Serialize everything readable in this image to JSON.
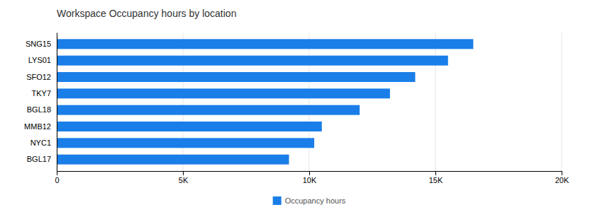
{
  "chart_data": {
    "type": "bar",
    "orientation": "horizontal",
    "title": "Workspace Occupancy hours by location",
    "categories": [
      "SNG15",
      "LYS01",
      "SFO12",
      "TKY7",
      "BGL18",
      "MMB12",
      "NYC1",
      "BGL17"
    ],
    "series": [
      {
        "name": "Occupancy hours",
        "color": "#1a7ee8",
        "values": [
          16500,
          15500,
          14200,
          13200,
          12000,
          10500,
          10200,
          9200
        ]
      }
    ],
    "xlim": [
      0,
      20000
    ],
    "xticks": [
      0,
      {
        "value": 5000,
        "label": "5K"
      },
      {
        "value": 10000,
        "label": "10K"
      },
      {
        "value": 15000,
        "label": "15K"
      },
      {
        "value": 20000,
        "label": "20K"
      }
    ],
    "grid": true,
    "legend": "bottom"
  }
}
